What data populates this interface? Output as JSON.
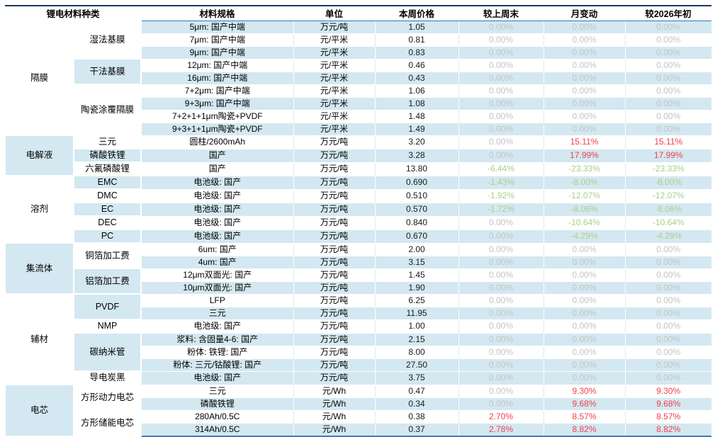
{
  "colors": {
    "stripe": "#d3e8f1",
    "red": "#f2404b",
    "green": "#a7d08a",
    "gray": "#c4c4c4",
    "line_top": "#17375e",
    "line_header": "#2e75b6",
    "line_bottom": "#3f7cbf"
  },
  "table": {
    "headers": [
      "锂电材料种类",
      "材料规格",
      "单位",
      "本周价格",
      "较上周末",
      "月变动",
      "较2026年初"
    ],
    "categories": [
      {
        "label": "隔膜",
        "rowspan": 9,
        "shaded": false
      },
      {
        "label": "电解液",
        "rowspan": 3,
        "shaded": true
      },
      {
        "label": "溶剂",
        "rowspan": 5,
        "shaded": false
      },
      {
        "label": "集流体",
        "rowspan": 4,
        "shaded": true
      },
      {
        "label": "辅材",
        "rowspan": 7,
        "shaded": false
      },
      {
        "label": "电芯",
        "rowspan": 4,
        "shaded": true
      }
    ],
    "subcategories": [
      {
        "label": "湿法基膜",
        "rowspan": 3,
        "shaded": false
      },
      {
        "label": "干法基膜",
        "rowspan": 2,
        "shaded": true
      },
      {
        "label": "陶瓷涂覆隔膜",
        "rowspan": 4,
        "shaded": false
      },
      {
        "label": "三元",
        "rowspan": 1,
        "shaded": false
      },
      {
        "label": "磷酸铁锂",
        "rowspan": 1,
        "shaded": true
      },
      {
        "label": "六氟磷酸锂",
        "rowspan": 1,
        "shaded": false
      },
      {
        "label": "EMC",
        "rowspan": 1,
        "shaded": true
      },
      {
        "label": "DMC",
        "rowspan": 1,
        "shaded": false
      },
      {
        "label": "EC",
        "rowspan": 1,
        "shaded": true
      },
      {
        "label": "DEC",
        "rowspan": 1,
        "shaded": false
      },
      {
        "label": "PC",
        "rowspan": 1,
        "shaded": true
      },
      {
        "label": "铜箔加工费",
        "rowspan": 2,
        "shaded": false
      },
      {
        "label": "铝箔加工费",
        "rowspan": 2,
        "shaded": true
      },
      {
        "label": "PVDF",
        "rowspan": 2,
        "shaded": true
      },
      {
        "label": "NMP",
        "rowspan": 1,
        "shaded": false
      },
      {
        "label": "碳纳米管",
        "rowspan": 3,
        "shaded": true
      },
      {
        "label": "导电炭黑",
        "rowspan": 1,
        "shaded": false
      },
      {
        "label": "方形动力电芯",
        "rowspan": 2,
        "shaded": false
      },
      {
        "label": "方形储能电芯",
        "rowspan": 2,
        "shaded": false
      }
    ],
    "rows": [
      {
        "spec": "5μm: 国产中端",
        "unit": "万元/吨",
        "price": "1.05",
        "wow": "0.00%",
        "wow_c": "gray",
        "mom": "0.00%",
        "mom_c": "gray",
        "ytd": "0.00%",
        "ytd_c": "gray",
        "shaded": true
      },
      {
        "spec": "7μm: 国产中端",
        "unit": "元/平米",
        "price": "0.81",
        "wow": "0.00%",
        "wow_c": "gray",
        "mom": "0.00%",
        "mom_c": "gray",
        "ytd": "0.00%",
        "ytd_c": "gray",
        "shaded": false
      },
      {
        "spec": "9μm: 国产中端",
        "unit": "元/平米",
        "price": "0.83",
        "wow": "0.00%",
        "wow_c": "gray",
        "mom": "0.00%",
        "mom_c": "gray",
        "ytd": "0.00%",
        "ytd_c": "gray",
        "shaded": true
      },
      {
        "spec": "12μm: 国产中端",
        "unit": "元/平米",
        "price": "0.46",
        "wow": "0.00%",
        "wow_c": "gray",
        "mom": "0.00%",
        "mom_c": "gray",
        "ytd": "0.00%",
        "ytd_c": "gray",
        "shaded": false
      },
      {
        "spec": "16μm: 国产中端",
        "unit": "元/平米",
        "price": "0.43",
        "wow": "0.00%",
        "wow_c": "gray",
        "mom": "0.00%",
        "mom_c": "gray",
        "ytd": "0.00%",
        "ytd_c": "gray",
        "shaded": true
      },
      {
        "spec": "7+2μm: 国产中端",
        "unit": "元/平米",
        "price": "1.06",
        "wow": "0.00%",
        "wow_c": "gray",
        "mom": "0.00%",
        "mom_c": "gray",
        "ytd": "0.00%",
        "ytd_c": "gray",
        "shaded": false
      },
      {
        "spec": "9+3μm: 国产中端",
        "unit": "元/平米",
        "price": "1.08",
        "wow": "0.00%",
        "wow_c": "gray",
        "mom": "0.00%",
        "mom_c": "gray",
        "ytd": "0.00%",
        "ytd_c": "gray",
        "shaded": true
      },
      {
        "spec": "7+2+1+1μm陶瓷+PVDF",
        "unit": "元/平米",
        "price": "1.48",
        "wow": "0.00%",
        "wow_c": "gray",
        "mom": "0.00%",
        "mom_c": "gray",
        "ytd": "0.00%",
        "ytd_c": "gray",
        "shaded": false
      },
      {
        "spec": "9+3+1+1μm陶瓷+PVDF",
        "unit": "元/平米",
        "price": "1.49",
        "wow": "0.00%",
        "wow_c": "gray",
        "mom": "0.00%",
        "mom_c": "gray",
        "ytd": "0.00%",
        "ytd_c": "gray",
        "shaded": true
      },
      {
        "spec": "圆柱/2600mAh",
        "unit": "万元/吨",
        "price": "3.20",
        "wow": "0.00%",
        "wow_c": "gray",
        "mom": "15.11%",
        "mom_c": "red",
        "ytd": "15.11%",
        "ytd_c": "red",
        "shaded": false
      },
      {
        "spec": "国产",
        "unit": "万元/吨",
        "price": "3.28",
        "wow": "0.00%",
        "wow_c": "gray",
        "mom": "17.99%",
        "mom_c": "red",
        "ytd": "17.99%",
        "ytd_c": "red",
        "shaded": true
      },
      {
        "spec": "国产",
        "unit": "万元/吨",
        "price": "13.80",
        "wow": "-6.44%",
        "wow_c": "green",
        "mom": "-23.33%",
        "mom_c": "green",
        "ytd": "-23.33%",
        "ytd_c": "green",
        "shaded": false
      },
      {
        "spec": "电池级: 国产",
        "unit": "万元/吨",
        "price": "0.690",
        "wow": "-1.43%",
        "wow_c": "green",
        "mom": "-8.00%",
        "mom_c": "green",
        "ytd": "-8.00%",
        "ytd_c": "green",
        "shaded": true
      },
      {
        "spec": "电池级: 国产",
        "unit": "万元/吨",
        "price": "0.510",
        "wow": "-1.92%",
        "wow_c": "green",
        "mom": "-12.07%",
        "mom_c": "green",
        "ytd": "-12.07%",
        "ytd_c": "green",
        "shaded": false
      },
      {
        "spec": "电池级: 国产",
        "unit": "万元/吨",
        "price": "0.570",
        "wow": "-1.72%",
        "wow_c": "green",
        "mom": "-8.06%",
        "mom_c": "green",
        "ytd": "-8.06%",
        "ytd_c": "green",
        "shaded": true
      },
      {
        "spec": "电池级: 国产",
        "unit": "万元/吨",
        "price": "0.840",
        "wow": "0.00%",
        "wow_c": "gray",
        "mom": "-10.64%",
        "mom_c": "green",
        "ytd": "-10.64%",
        "ytd_c": "green",
        "shaded": false
      },
      {
        "spec": "电池级: 国产",
        "unit": "万元/吨",
        "price": "0.670",
        "wow": "0.00%",
        "wow_c": "gray",
        "mom": "-4.29%",
        "mom_c": "green",
        "ytd": "-4.29%",
        "ytd_c": "green",
        "shaded": true
      },
      {
        "spec": "6um: 国产",
        "unit": "万元/吨",
        "price": "2.00",
        "wow": "0.00%",
        "wow_c": "gray",
        "mom": "0.00%",
        "mom_c": "gray",
        "ytd": "0.00%",
        "ytd_c": "gray",
        "shaded": false
      },
      {
        "spec": "4um: 国产",
        "unit": "万元/吨",
        "price": "3.15",
        "wow": "0.00%",
        "wow_c": "gray",
        "mom": "0.00%",
        "mom_c": "gray",
        "ytd": "0.00%",
        "ytd_c": "gray",
        "shaded": true
      },
      {
        "spec": "12μm双面光: 国产",
        "unit": "万元/吨",
        "price": "1.45",
        "wow": "0.00%",
        "wow_c": "gray",
        "mom": "0.00%",
        "mom_c": "gray",
        "ytd": "0.00%",
        "ytd_c": "gray",
        "shaded": false
      },
      {
        "spec": "10μm双面光: 国产",
        "unit": "万元/吨",
        "price": "1.90",
        "wow": "0.00%",
        "wow_c": "gray",
        "mom": "0.00%",
        "mom_c": "gray",
        "ytd": "0.00%",
        "ytd_c": "gray",
        "shaded": true
      },
      {
        "spec": "LFP",
        "unit": "万元/吨",
        "price": "6.25",
        "wow": "0.00%",
        "wow_c": "gray",
        "mom": "0.00%",
        "mom_c": "gray",
        "ytd": "0.00%",
        "ytd_c": "gray",
        "shaded": false
      },
      {
        "spec": "三元",
        "unit": "万元/吨",
        "price": "11.95",
        "wow": "0.00%",
        "wow_c": "gray",
        "mom": "0.00%",
        "mom_c": "gray",
        "ytd": "0.00%",
        "ytd_c": "gray",
        "shaded": true
      },
      {
        "spec": "电池级: 国产",
        "unit": "万元/吨",
        "price": "1.00",
        "wow": "0.00%",
        "wow_c": "gray",
        "mom": "0.00%",
        "mom_c": "gray",
        "ytd": "0.00%",
        "ytd_c": "gray",
        "shaded": false
      },
      {
        "spec": "浆料: 含固量4-6: 国产",
        "unit": "万元/吨",
        "price": "2.15",
        "wow": "0.00%",
        "wow_c": "gray",
        "mom": "0.00%",
        "mom_c": "gray",
        "ytd": "0.00%",
        "ytd_c": "gray",
        "shaded": true
      },
      {
        "spec": "粉体: 铁锂: 国产",
        "unit": "万元/吨",
        "price": "8.00",
        "wow": "0.00%",
        "wow_c": "gray",
        "mom": "0.00%",
        "mom_c": "gray",
        "ytd": "0.00%",
        "ytd_c": "gray",
        "shaded": false
      },
      {
        "spec": "粉体: 三元/钴酸锂: 国产",
        "unit": "万元/吨",
        "price": "27.50",
        "wow": "0.00%",
        "wow_c": "gray",
        "mom": "0.00%",
        "mom_c": "gray",
        "ytd": "0.00%",
        "ytd_c": "gray",
        "shaded": true
      },
      {
        "spec": "电池级: 国产",
        "unit": "万元/吨",
        "price": "3.75",
        "wow": "0.00%",
        "wow_c": "gray",
        "mom": "0.00%",
        "mom_c": "gray",
        "ytd": "0.00%",
        "ytd_c": "gray",
        "shaded": true
      },
      {
        "spec": "三元",
        "unit": "元/Wh",
        "price": "0.47",
        "wow": "0.00%",
        "wow_c": "gray",
        "mom": "9.30%",
        "mom_c": "red",
        "ytd": "9.30%",
        "ytd_c": "red",
        "shaded": false
      },
      {
        "spec": "磷酸铁锂",
        "unit": "元/Wh",
        "price": "0.34",
        "wow": "0.00%",
        "wow_c": "gray",
        "mom": "9.68%",
        "mom_c": "red",
        "ytd": "9.68%",
        "ytd_c": "red",
        "shaded": true
      },
      {
        "spec": "280Ah/0.5C",
        "unit": "元/Wh",
        "price": "0.38",
        "wow": "2.70%",
        "wow_c": "red",
        "mom": "8.57%",
        "mom_c": "red",
        "ytd": "8.57%",
        "ytd_c": "red",
        "shaded": false
      },
      {
        "spec": "314Ah/0.5C",
        "unit": "元/Wh",
        "price": "0.37",
        "wow": "2.78%",
        "wow_c": "red",
        "mom": "8.82%",
        "mom_c": "red",
        "ytd": "8.82%",
        "ytd_c": "red",
        "shaded": true
      }
    ]
  }
}
